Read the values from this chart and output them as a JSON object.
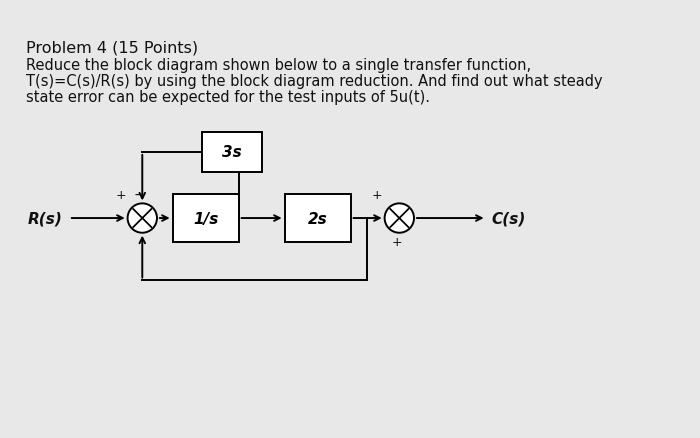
{
  "title": "Problem 4 (15 Points)",
  "line1": "Reduce the block diagram shown below to a single transfer function,",
  "line2": "T(s)=C(s)/R(s) by using the block diagram reduction. And find out what steady",
  "line3": "state error can be expected for the test inputs of 5u(t).",
  "block_3s": "3s",
  "block_1s": "1/s",
  "block_2s": "2s",
  "input_label": "R(s)",
  "output_label": "C(s)",
  "bg_color": "#e8e8e8",
  "text_color": "#111111",
  "box_facecolor": "#ffffff",
  "box_edgecolor": "#000000",
  "title_fontsize": 11.5,
  "body_fontsize": 10.5,
  "diagram_fontsize": 11
}
